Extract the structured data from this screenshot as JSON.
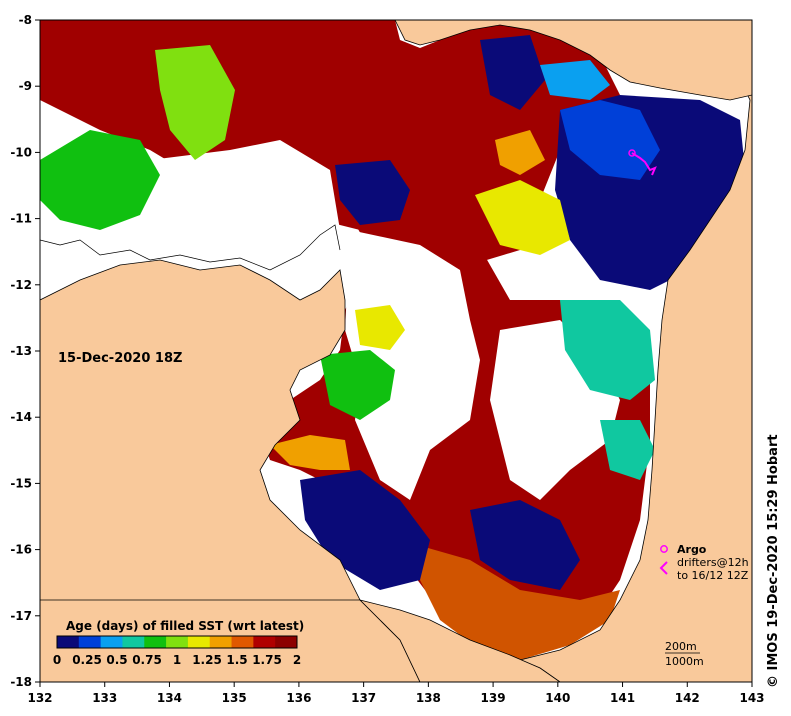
{
  "map": {
    "date_label": "15-Dec-2020 18Z",
    "credit": "© IMOS 19-Dec-2020 15:29 Hobart",
    "x_ticks": [
      "132",
      "133",
      "134",
      "135",
      "136",
      "137",
      "138",
      "139",
      "140",
      "141",
      "142",
      "143"
    ],
    "y_ticks": [
      "-8",
      "-9",
      "-10",
      "-11",
      "-12",
      "-13",
      "-14",
      "-15",
      "-16",
      "-17",
      "-18"
    ],
    "colors": {
      "land": "#f9c99b",
      "no_data": "#ffffff"
    }
  },
  "colorbar": {
    "title": "Age (days) of filled SST (wrt latest)",
    "tick_labels": [
      "0",
      "0.25",
      "0.5",
      "0.75",
      "1",
      "1.25",
      "1.5",
      "1.75",
      "2"
    ],
    "palette": [
      "#0a0a78",
      "#0040d8",
      "#0aa0f0",
      "#10c8a0",
      "#10c010",
      "#80e010",
      "#e8e800",
      "#f0a000",
      "#e05800",
      "#b00000",
      "#8c0000"
    ]
  },
  "legend": {
    "argo_label": "Argo",
    "drifters_label": "drifters@12h",
    "drifters_sub": "to 16/12 12Z",
    "argo_color": "#ff00ff"
  },
  "contours": {
    "label_200m": "200m",
    "label_1000m": "1000m"
  }
}
